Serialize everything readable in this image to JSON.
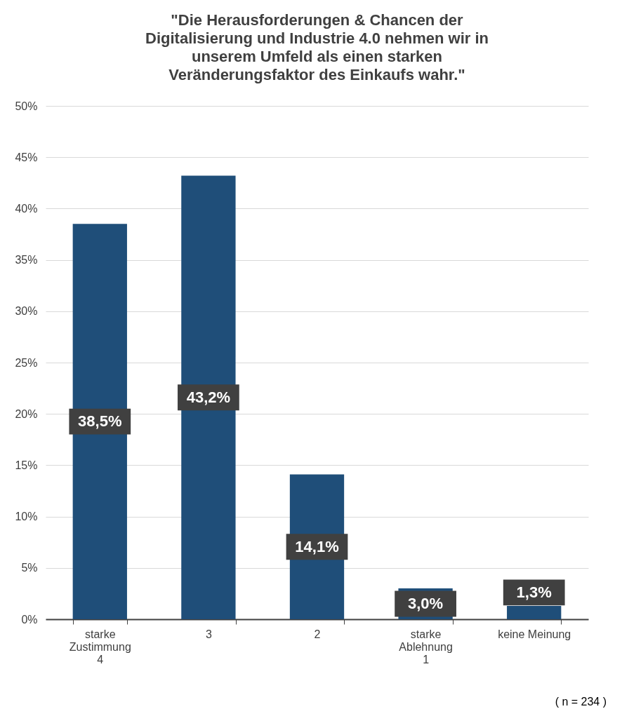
{
  "chart_data": {
    "type": "bar",
    "title": "\"Die Herausforderungen & Chancen der Digitalisierung und Industrie 4.0 nehmen wir in unserem Umfeld als einen starken Veränderungsfaktor des Einkaufs wahr.\"",
    "categories": [
      "starke\nZustimmung\n4",
      "3",
      "2",
      "starke\nAblehnung\n1",
      "keine Meinung"
    ],
    "values": [
      38.5,
      43.2,
      14.1,
      3.0,
      1.3
    ],
    "color": "#1f4e79",
    "value_labels": [
      "38,5%",
      "43,2%",
      "14,1%",
      "3,0%",
      "1,3%"
    ],
    "ylim": [
      0,
      50
    ],
    "yticks": [
      {
        "value": 0,
        "label": "0%"
      },
      {
        "value": 5,
        "label": "5%"
      },
      {
        "value": 10,
        "label": "10%"
      },
      {
        "value": 15,
        "label": "15%"
      },
      {
        "value": 20,
        "label": "20%"
      },
      {
        "value": 25,
        "label": "25%"
      },
      {
        "value": 30,
        "label": "30%"
      },
      {
        "value": 35,
        "label": "35%"
      },
      {
        "value": 40,
        "label": "40%"
      },
      {
        "value": 45,
        "label": "45%"
      },
      {
        "value": 50,
        "label": "50%"
      }
    ],
    "grid": "y",
    "annotations": [
      "( n = 234 )"
    ]
  }
}
